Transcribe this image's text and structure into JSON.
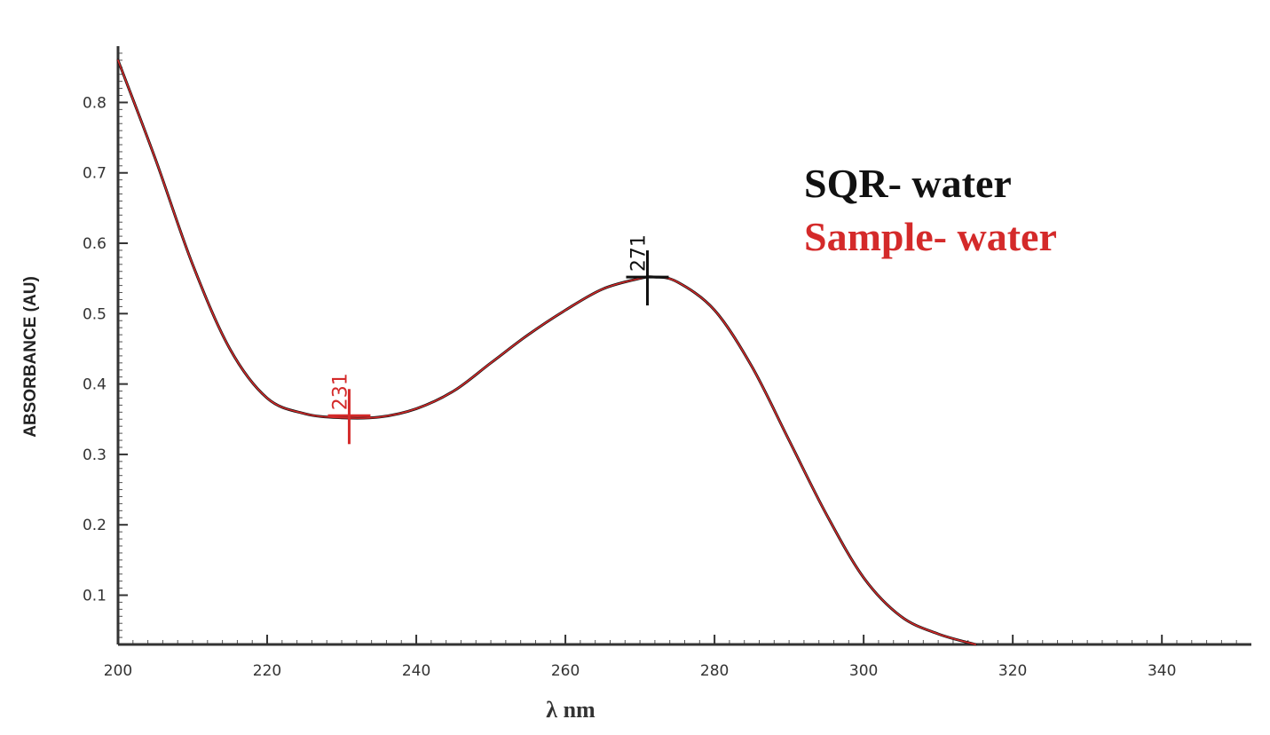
{
  "chart_data": {
    "type": "line",
    "xlabel": "λ nm",
    "ylabel": "ABSORBANCE (AU)",
    "xlim": [
      200,
      352
    ],
    "ylim": [
      0.03,
      0.88
    ],
    "x_ticks": [
      200,
      220,
      240,
      260,
      280,
      300,
      320,
      340
    ],
    "x_tick_labels": [
      "200",
      "220",
      "240",
      "260",
      "280",
      "300",
      "320",
      "340"
    ],
    "y_ticks": [
      0.1,
      0.2,
      0.3,
      0.4,
      0.5,
      0.6,
      0.7,
      0.8
    ],
    "y_tick_labels": [
      "0.1",
      "0.2",
      "0.3",
      "0.4",
      "0.5",
      "0.6",
      "0.7",
      "0.8"
    ],
    "grid": false,
    "legend_position": "top-right",
    "series": [
      {
        "name": "SQR- water",
        "color": "#111111",
        "x": [
          200,
          205,
          210,
          215,
          220,
          225,
          230,
          235,
          240,
          245,
          250,
          255,
          260,
          265,
          270,
          272,
          275,
          280,
          285,
          290,
          295,
          300,
          305,
          310,
          315
        ],
        "y": [
          0.86,
          0.72,
          0.57,
          0.45,
          0.38,
          0.358,
          0.352,
          0.353,
          0.365,
          0.39,
          0.43,
          0.47,
          0.505,
          0.535,
          0.55,
          0.552,
          0.545,
          0.505,
          0.425,
          0.32,
          0.215,
          0.125,
          0.07,
          0.045,
          0.03
        ]
      },
      {
        "name": "Sample- water",
        "color": "#d42a2a",
        "x": [
          200,
          205,
          210,
          215,
          220,
          225,
          230,
          235,
          240,
          245,
          250,
          255,
          260,
          265,
          270,
          272,
          275,
          280,
          285,
          290,
          295,
          300,
          305,
          310,
          315
        ],
        "y": [
          0.86,
          0.72,
          0.57,
          0.45,
          0.38,
          0.358,
          0.352,
          0.353,
          0.365,
          0.39,
          0.43,
          0.47,
          0.505,
          0.535,
          0.55,
          0.552,
          0.545,
          0.505,
          0.425,
          0.32,
          0.215,
          0.125,
          0.07,
          0.045,
          0.03
        ]
      }
    ],
    "annotations": [
      {
        "text": "231",
        "x": 231,
        "y": 0.355,
        "color": "#d42a2a",
        "marker": "cross"
      },
      {
        "text": "271",
        "x": 271,
        "y": 0.552,
        "color": "#111111",
        "marker": "cross"
      }
    ]
  }
}
